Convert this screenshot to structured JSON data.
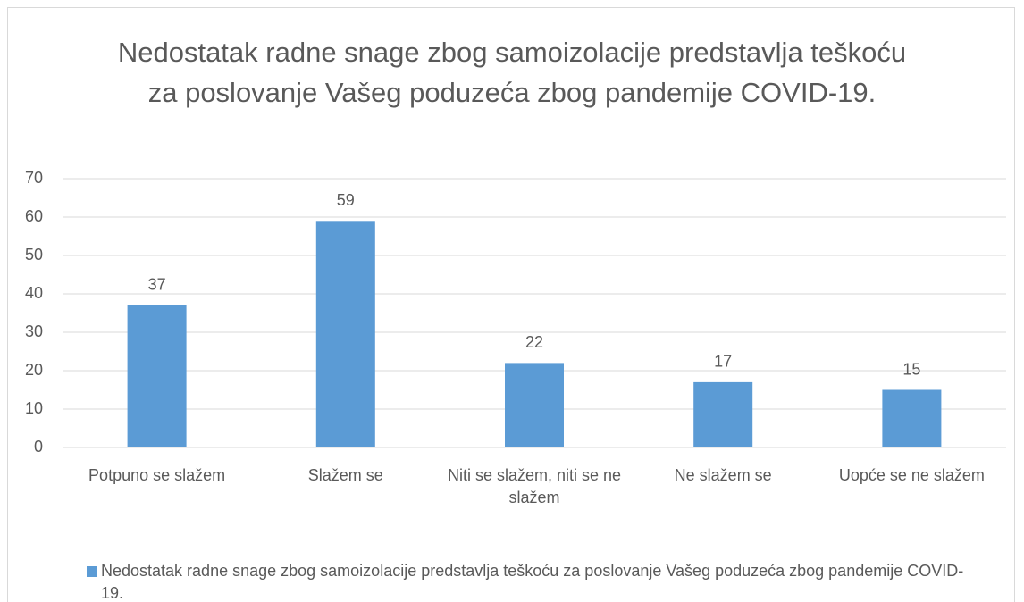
{
  "chart_data": {
    "type": "bar",
    "title": "Nedostatak radne snage zbog samoizolacije predstavlja teškoću za poslovanje Vašeg poduzeća zbog pandemije COVID-19.",
    "categories": [
      "Potpuno se slažem",
      "Slažem se",
      "Niti se slažem, niti se ne slažem",
      "Ne slažem se",
      "Uopće se ne slažem"
    ],
    "series": [
      {
        "name": "Nedostatak radne snage zbog samoizolacije predstavlja teškoću za poslovanje Vašeg poduzeća zbog pandemije COVID-19.",
        "color": "#5b9bd5",
        "values": [
          37,
          59,
          22,
          17,
          15
        ]
      }
    ],
    "ylim": [
      0,
      70
    ],
    "yticks": [
      0,
      10,
      20,
      30,
      40,
      50,
      60,
      70
    ],
    "grid": true,
    "legend": "bottom"
  }
}
